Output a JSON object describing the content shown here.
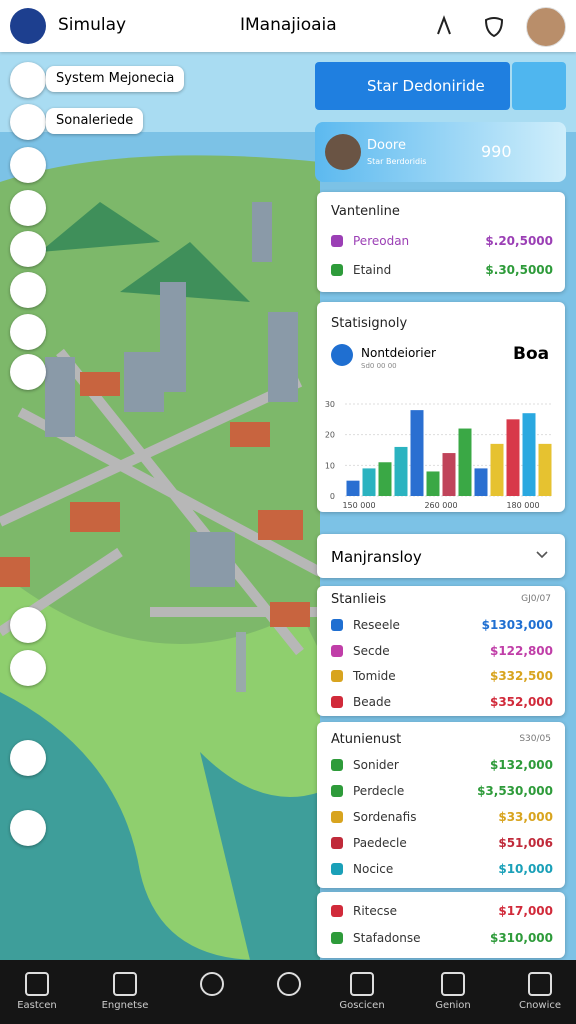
{
  "header": {
    "app_name": "Simulay",
    "title": "IManajioaia"
  },
  "map_labels": [
    "System Mejonecia",
    "Sonaleriede"
  ],
  "banner": {
    "title": "Star Dedoniride"
  },
  "profile": {
    "name": "Doore",
    "subtitle": "Star Berdoridis",
    "score": "990"
  },
  "valuation": {
    "title": "Vantenline",
    "rows": [
      {
        "label": "Pereodan",
        "value": "$.20,5000",
        "color": "#9b3fb5"
      },
      {
        "label": "Etaind",
        "value": "$.30,5000",
        "color": "#2e9b3a"
      }
    ]
  },
  "stats": {
    "title": "Statisignoly",
    "label": "Nontdeiorier",
    "sublabel": "Sd0 00 00",
    "value": "Boa",
    "chart": {
      "type": "bar",
      "ylim": [
        0,
        30
      ],
      "yticks": [
        0,
        10,
        20,
        30
      ],
      "xlabels": [
        "150 000",
        "260 000",
        "180 000"
      ],
      "values": [
        5,
        9,
        11,
        16,
        28,
        8,
        14,
        22,
        9,
        17,
        25,
        27,
        17
      ],
      "colors": [
        "#2a6fd1",
        "#2bb3c0",
        "#3aa845",
        "#2bb3c0",
        "#2a6fd1",
        "#3aa845",
        "#c0445a",
        "#3aa845",
        "#2a6fd1",
        "#e6c230",
        "#d8394a",
        "#2aa8e0",
        "#e6c230"
      ]
    }
  },
  "management": {
    "title": "Manjransloy"
  },
  "starlists": {
    "title": "Stanlieis",
    "note": "GJ0/07",
    "rows": [
      {
        "label": "Reseele",
        "value": "$1303,000",
        "color": "#1f6fd1"
      },
      {
        "label": "Secde",
        "value": "$122,800",
        "color": "#c03ea8"
      },
      {
        "label": "Tomide",
        "value": "$332,500",
        "color": "#d8a41f"
      },
      {
        "label": "Beade",
        "value": "$352,000",
        "color": "#d12a3a"
      }
    ]
  },
  "atunlenust": {
    "title": "Atunienust",
    "note": "S30/05",
    "rows": [
      {
        "label": "Sonider",
        "value": "$132,000",
        "color": "#2e9b3a"
      },
      {
        "label": "Perdecle",
        "value": "$3,530,000",
        "color": "#2e9b3a"
      },
      {
        "label": "Sordenafis",
        "value": "$33,000",
        "color": "#d8a41f"
      },
      {
        "label": "Paedecle",
        "value": "$51,006",
        "color": "#c02a3a"
      },
      {
        "label": "Nocice",
        "value": "$10,000",
        "color": "#1aa0b8"
      }
    ]
  },
  "bottom_list": {
    "rows": [
      {
        "label": "Ritecse",
        "value": "$17,000",
        "color": "#d12a3a"
      },
      {
        "label": "Stafadonse",
        "value": "$310,000",
        "color": "#2e9b3a"
      }
    ]
  },
  "nav": [
    "Eastcen",
    "Engnetse",
    "Goscicen",
    "Genion",
    "Cnowice"
  ]
}
